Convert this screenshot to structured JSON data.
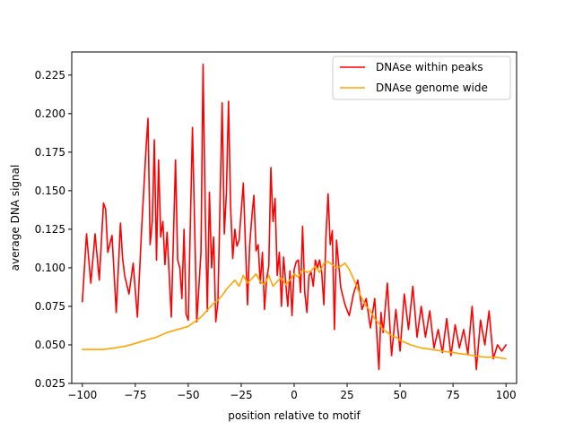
{
  "chart_data": {
    "type": "line",
    "title": "",
    "xlabel": "position relative to motif",
    "ylabel": "average DNA signal",
    "xlim": [
      -105,
      105
    ],
    "ylim": [
      0.025,
      0.24
    ],
    "xticks": [
      -100,
      -75,
      -50,
      -25,
      0,
      25,
      50,
      75,
      100
    ],
    "xtick_labels": [
      "−100",
      "−75",
      "−50",
      "−25",
      "0",
      "25",
      "50",
      "75",
      "100"
    ],
    "yticks": [
      0.025,
      0.05,
      0.075,
      0.1,
      0.125,
      0.15,
      0.175,
      0.2,
      0.225
    ],
    "ytick_labels": [
      "0.025",
      "0.050",
      "0.075",
      "0.100",
      "0.125",
      "0.150",
      "0.175",
      "0.200",
      "0.225"
    ],
    "grid": false,
    "legend": "top-right",
    "series": [
      {
        "name": "DNAse within peaks",
        "color": "#ff0000",
        "x": [
          -100,
          -98,
          -96,
          -94,
          -92,
          -90,
          -89,
          -88,
          -86,
          -84,
          -82,
          -81,
          -80,
          -78,
          -76,
          -74,
          -72,
          -70,
          -69,
          -68,
          -67,
          -66,
          -65,
          -64,
          -63,
          -62,
          -61,
          -60,
          -58,
          -56,
          -55,
          -54,
          -53,
          -52,
          -51,
          -50,
          -48,
          -46,
          -44,
          -43,
          -42,
          -41,
          -40,
          -39,
          -38,
          -37,
          -36,
          -34,
          -33,
          -32,
          -31,
          -30,
          -29,
          -28,
          -27,
          -26,
          -24,
          -22,
          -21,
          -20,
          -19,
          -18,
          -17,
          -16,
          -15,
          -14,
          -13,
          -12,
          -11,
          -10,
          -9,
          -8,
          -7,
          -6,
          -5,
          -4,
          -3,
          -2,
          -1,
          0,
          1,
          2,
          3,
          4,
          5,
          6,
          7,
          8,
          9,
          10,
          11,
          12,
          13,
          14,
          15,
          16,
          17,
          18,
          19,
          20,
          22,
          24,
          26,
          28,
          30,
          32,
          34,
          36,
          38,
          40,
          41,
          42,
          44,
          46,
          48,
          50,
          52,
          54,
          56,
          58,
          60,
          62,
          64,
          66,
          68,
          70,
          72,
          74,
          76,
          78,
          80,
          82,
          84,
          86,
          88,
          90,
          92,
          94,
          96,
          98,
          100
        ],
        "values": [
          0.078,
          0.122,
          0.09,
          0.122,
          0.092,
          0.142,
          0.138,
          0.11,
          0.121,
          0.071,
          0.129,
          0.106,
          0.095,
          0.083,
          0.103,
          0.068,
          0.125,
          0.176,
          0.197,
          0.115,
          0.13,
          0.183,
          0.105,
          0.17,
          0.12,
          0.13,
          0.102,
          0.123,
          0.068,
          0.17,
          0.105,
          0.1,
          0.08,
          0.125,
          0.07,
          0.066,
          0.191,
          0.065,
          0.11,
          0.232,
          0.138,
          0.072,
          0.149,
          0.1,
          0.12,
          0.065,
          0.078,
          0.207,
          0.122,
          0.148,
          0.208,
          0.14,
          0.106,
          0.125,
          0.114,
          0.118,
          0.155,
          0.076,
          0.115,
          0.133,
          0.147,
          0.111,
          0.115,
          0.09,
          0.11,
          0.073,
          0.093,
          0.101,
          0.165,
          0.13,
          0.145,
          0.095,
          0.11,
          0.075,
          0.107,
          0.09,
          0.075,
          0.098,
          0.069,
          0.099,
          0.104,
          0.105,
          0.084,
          0.127,
          0.084,
          0.071,
          0.095,
          0.097,
          0.088,
          0.105,
          0.1,
          0.105,
          0.097,
          0.076,
          0.12,
          0.148,
          0.115,
          0.124,
          0.06,
          0.118,
          0.087,
          0.076,
          0.069,
          0.083,
          0.092,
          0.073,
          0.08,
          0.061,
          0.08,
          0.034,
          0.071,
          0.058,
          0.09,
          0.043,
          0.073,
          0.046,
          0.083,
          0.06,
          0.088,
          0.055,
          0.075,
          0.055,
          0.072,
          0.048,
          0.06,
          0.045,
          0.067,
          0.043,
          0.063,
          0.048,
          0.06,
          0.044,
          0.075,
          0.034,
          0.066,
          0.05,
          0.072,
          0.041,
          0.05,
          0.046,
          0.05
        ]
      },
      {
        "name": "DNAse genome wide",
        "color": "#ffa500",
        "x": [
          -100,
          -95,
          -90,
          -85,
          -80,
          -75,
          -70,
          -65,
          -60,
          -55,
          -50,
          -48,
          -46,
          -44,
          -42,
          -40,
          -38,
          -36,
          -34,
          -32,
          -30,
          -28,
          -26,
          -24,
          -22,
          -20,
          -18,
          -16,
          -14,
          -12,
          -10,
          -8,
          -6,
          -4,
          -2,
          0,
          2,
          4,
          6,
          8,
          10,
          12,
          14,
          16,
          18,
          20,
          22,
          24,
          26,
          28,
          30,
          32,
          34,
          36,
          38,
          40,
          42,
          44,
          46,
          48,
          50,
          55,
          60,
          65,
          70,
          75,
          80,
          85,
          90,
          95,
          100
        ],
        "values": [
          0.047,
          0.047,
          0.047,
          0.048,
          0.049,
          0.051,
          0.053,
          0.055,
          0.058,
          0.06,
          0.062,
          0.064,
          0.066,
          0.068,
          0.071,
          0.074,
          0.077,
          0.079,
          0.082,
          0.086,
          0.089,
          0.092,
          0.088,
          0.095,
          0.09,
          0.093,
          0.096,
          0.091,
          0.089,
          0.095,
          0.088,
          0.091,
          0.094,
          0.089,
          0.092,
          0.096,
          0.094,
          0.099,
          0.097,
          0.098,
          0.101,
          0.097,
          0.103,
          0.104,
          0.102,
          0.1,
          0.101,
          0.103,
          0.099,
          0.093,
          0.086,
          0.08,
          0.075,
          0.072,
          0.067,
          0.064,
          0.06,
          0.058,
          0.056,
          0.055,
          0.053,
          0.05,
          0.048,
          0.047,
          0.046,
          0.045,
          0.044,
          0.043,
          0.042,
          0.042,
          0.041
        ]
      }
    ]
  }
}
